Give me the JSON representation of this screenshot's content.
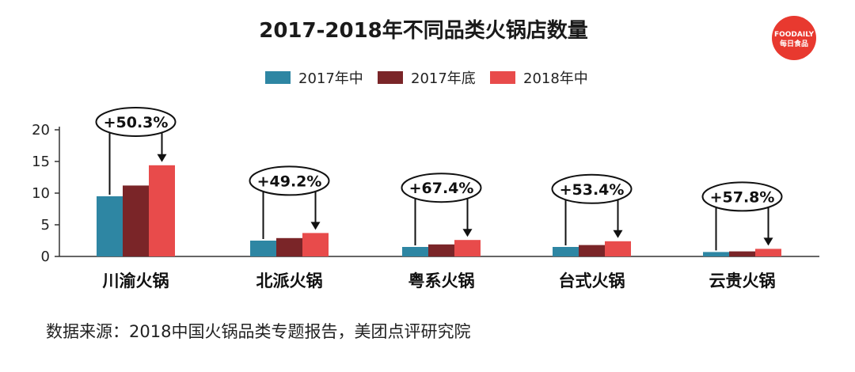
{
  "chart_data": {
    "type": "bar",
    "title": "2017-2018年不同品类火锅店数量",
    "categories": [
      "川渝火锅",
      "北派火锅",
      "粤系火锅",
      "台式火锅",
      "云贵火锅"
    ],
    "series": [
      {
        "name": "2017年中",
        "color": "#2e86a3",
        "values": [
          9.5,
          2.5,
          1.5,
          1.5,
          0.7
        ]
      },
      {
        "name": "2017年底",
        "color": "#7a2528",
        "values": [
          11.2,
          2.9,
          1.9,
          1.8,
          0.8
        ]
      },
      {
        "name": "2018年中",
        "color": "#e84b4b",
        "values": [
          14.4,
          3.7,
          2.6,
          2.4,
          1.2
        ]
      }
    ],
    "annotations": [
      "+50.3%",
      "+49.2%",
      "+67.4%",
      "+53.4%",
      "+57.8%"
    ],
    "yticks": [
      0,
      5,
      10,
      15,
      20
    ],
    "ylim": [
      0,
      20
    ],
    "legend": "top-center",
    "grid": false
  },
  "logo": {
    "line1": "FOODAILY",
    "line2": "每日食品",
    "color": "#e8392f"
  },
  "source": "数据来源：2018中国火锅品类专题报告，美团点评研究院"
}
